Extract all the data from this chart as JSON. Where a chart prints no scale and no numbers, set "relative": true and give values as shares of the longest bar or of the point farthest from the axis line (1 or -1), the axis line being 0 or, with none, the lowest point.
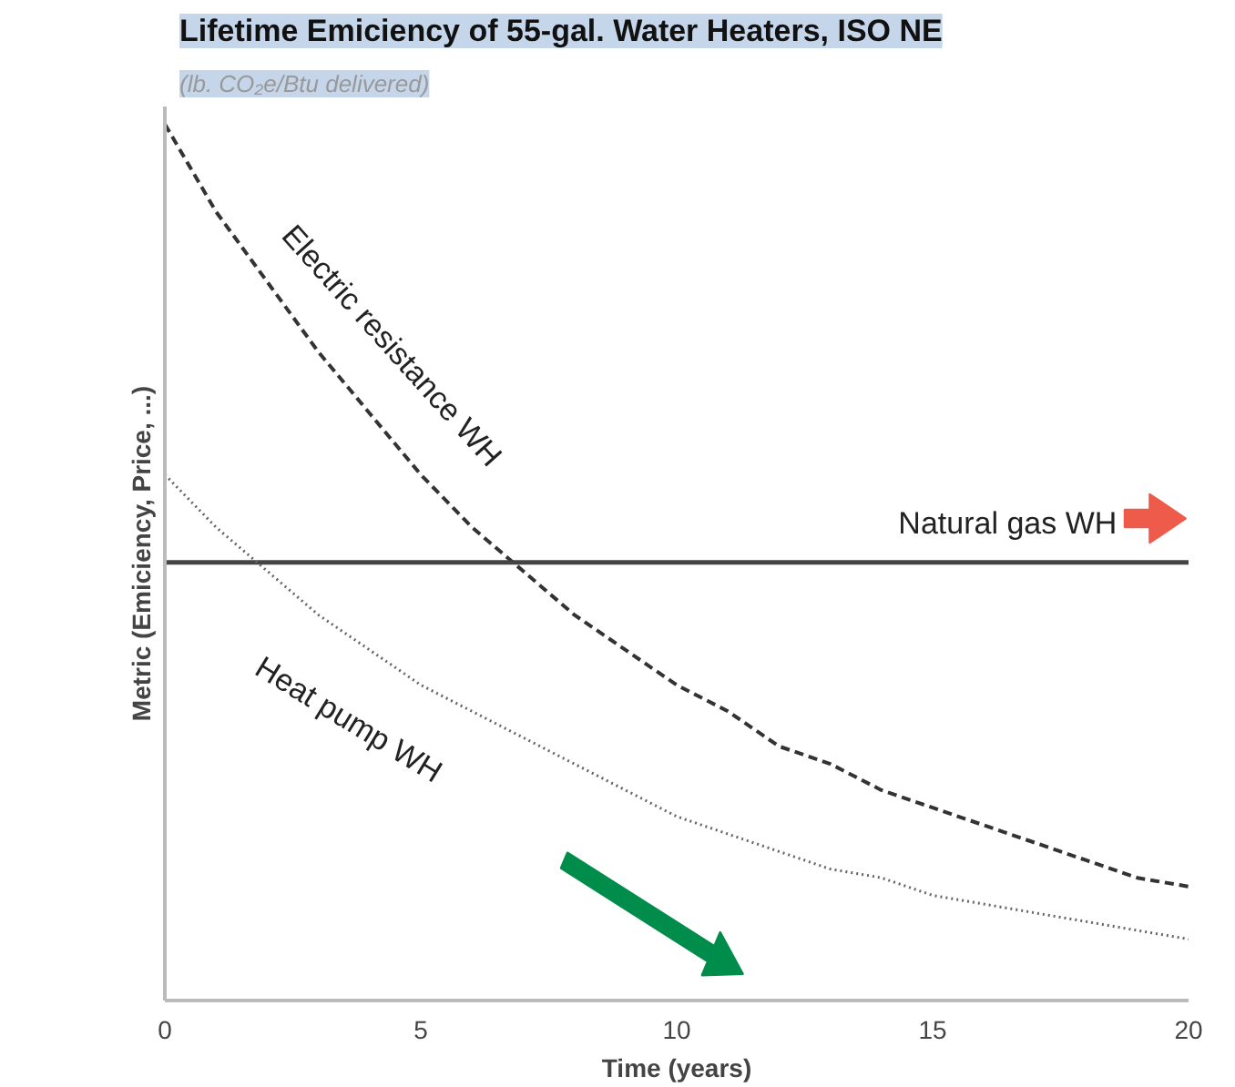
{
  "chart_data": {
    "type": "line",
    "title": "Lifetime Emiciency of 55-gal. Water Heaters, ISO NE",
    "subtitle": "(lb. CO₂e/Btu delivered)",
    "xlabel": "Time (years)",
    "ylabel": "Metric (Emiciency, Price, ...)",
    "relative": true,
    "x": [
      0,
      1,
      2,
      3,
      4,
      5,
      6,
      7,
      8,
      9,
      10,
      11,
      12,
      13,
      14,
      15,
      16,
      17,
      18,
      19,
      20
    ],
    "xlim": [
      0,
      20
    ],
    "xticks": [
      0,
      5,
      10,
      15,
      20
    ],
    "grid": false,
    "series": [
      {
        "name": "Electric resistance WH",
        "color": "#333333",
        "line_style": "dashed",
        "values": [
          1,
          0.9,
          0.82,
          0.74,
          0.67,
          0.6,
          0.54,
          0.49,
          0.44,
          0.4,
          0.36,
          0.33,
          0.29,
          0.27,
          0.24,
          0.22,
          0.2,
          0.18,
          0.16,
          0.14,
          0.13
        ]
      },
      {
        "name": "Natural gas WH",
        "color": "#444444",
        "line_style": "solid",
        "values": [
          0.5,
          0.5,
          0.5,
          0.5,
          0.5,
          0.5,
          0.5,
          0.5,
          0.5,
          0.5,
          0.5,
          0.5,
          0.5,
          0.5,
          0.5,
          0.5,
          0.5,
          0.5,
          0.5,
          0.5,
          0.5
        ]
      },
      {
        "name": "Heat pump WH",
        "color": "#666666",
        "line_style": "dotted",
        "values": [
          0.6,
          0.54,
          0.49,
          0.44,
          0.4,
          0.36,
          0.33,
          0.3,
          0.27,
          0.24,
          0.21,
          0.19,
          0.17,
          0.15,
          0.14,
          0.12,
          0.11,
          0.1,
          0.09,
          0.08,
          0.07
        ]
      }
    ]
  }
}
